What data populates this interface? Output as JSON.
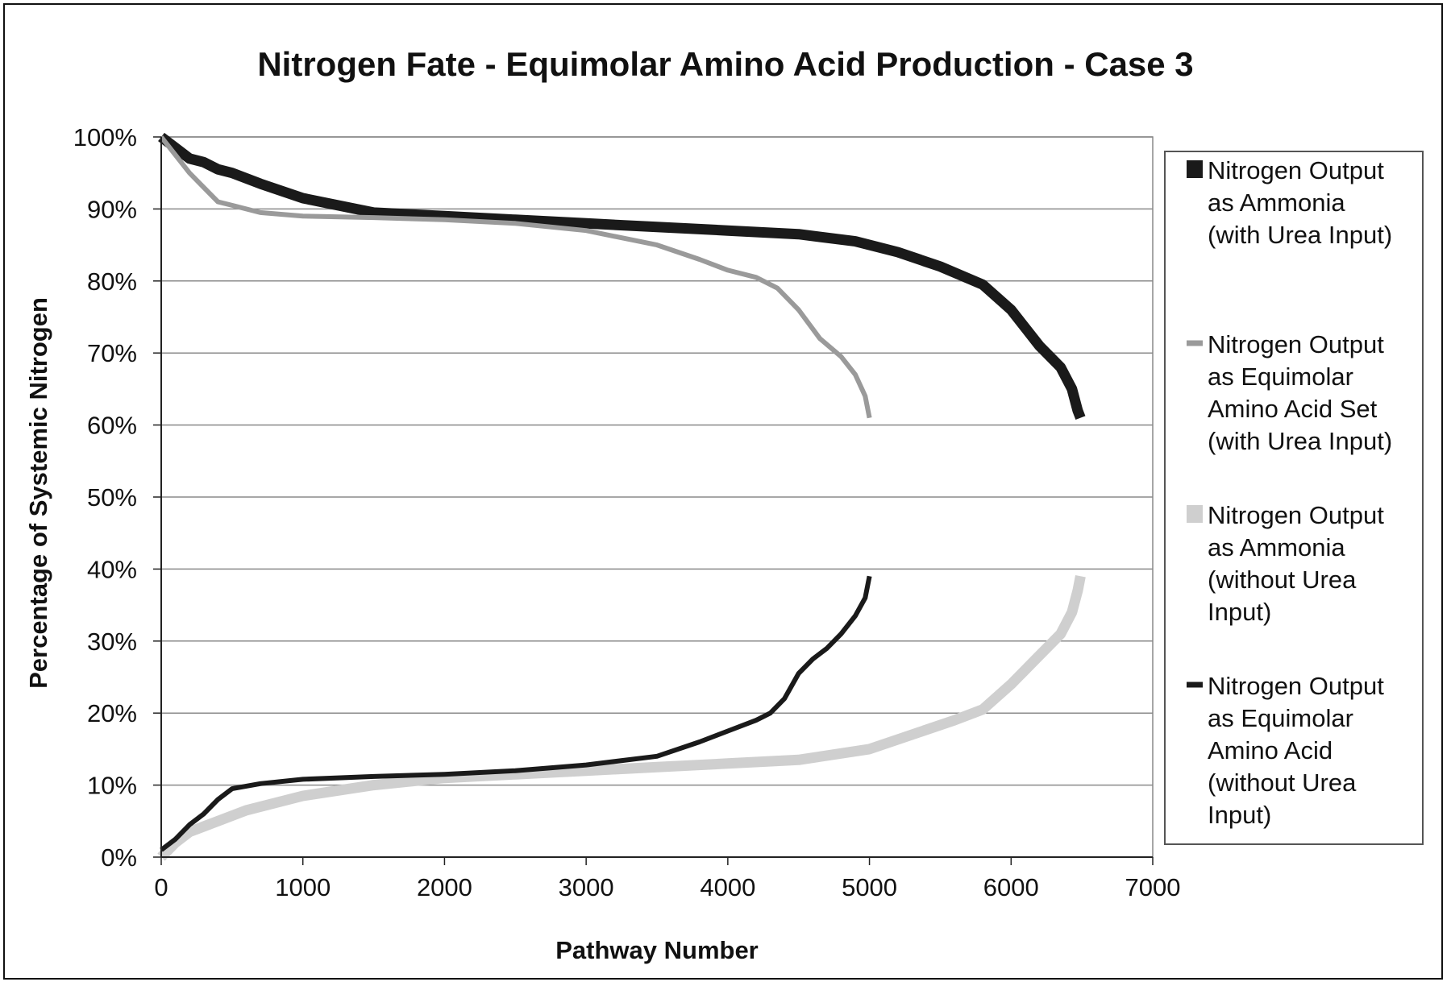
{
  "chart_data": {
    "type": "line",
    "title": "Nitrogen Fate - Equimolar Amino Acid Production - Case 3",
    "xlabel": "Pathway Number",
    "ylabel": "Percentage of Systemic Nitrogen",
    "xlim": [
      0,
      7000
    ],
    "ylim": [
      0,
      100
    ],
    "x_ticks": [
      "0",
      "1000",
      "2000",
      "3000",
      "4000",
      "5000",
      "6000",
      "7000"
    ],
    "y_ticks": [
      "0%",
      "10%",
      "20%",
      "30%",
      "40%",
      "50%",
      "60%",
      "70%",
      "80%",
      "90%",
      "100%"
    ],
    "grid": "horizontal",
    "legend_position": "right",
    "series": [
      {
        "name": [
          "Nitrogen Output",
          "as Ammonia",
          "(with Urea Input)"
        ],
        "color": "#1a1a1a",
        "line_style": "thick",
        "x": [
          0,
          100,
          200,
          300,
          400,
          500,
          700,
          1000,
          1500,
          2000,
          2500,
          3000,
          3500,
          4000,
          4500,
          4900,
          5200,
          5500,
          5800,
          6000,
          6200,
          6350,
          6430,
          6470,
          6490
        ],
        "y": [
          100,
          98.5,
          97,
          96.5,
          95.5,
          95,
          93.5,
          91.5,
          89.5,
          89,
          88.5,
          88,
          87.5,
          87,
          86.5,
          85.5,
          84,
          82,
          79.5,
          76,
          71,
          68,
          65,
          62,
          61
        ]
      },
      {
        "name": [
          "Nitrogen Output",
          "as Equimolar",
          "Amino Acid Set",
          "(with Urea Input)"
        ],
        "color": "#9a9a9a",
        "line_style": "medium",
        "x": [
          0,
          100,
          200,
          300,
          400,
          500,
          700,
          1000,
          1500,
          2000,
          2500,
          3000,
          3500,
          3800,
          4000,
          4200,
          4350,
          4500,
          4650,
          4800,
          4900,
          4970,
          5000
        ],
        "y": [
          100,
          97.5,
          95,
          93,
          91,
          90.5,
          89.5,
          89,
          88.8,
          88.5,
          88,
          87,
          85,
          83,
          81.5,
          80.5,
          79,
          76,
          72,
          69.5,
          67,
          64,
          61
        ]
      },
      {
        "name": [
          "Nitrogen Output",
          "as Ammonia",
          "(without Urea",
          "Input)"
        ],
        "color": "#cfcfcf",
        "line_style": "thick",
        "x": [
          0,
          100,
          200,
          400,
          600,
          1000,
          1500,
          2000,
          2500,
          3000,
          3500,
          4000,
          4500,
          5000,
          5300,
          5600,
          5800,
          6000,
          6200,
          6350,
          6430,
          6470,
          6490
        ],
        "y": [
          0,
          2,
          3.5,
          5,
          6.5,
          8.5,
          10,
          11,
          11.5,
          12,
          12.5,
          13,
          13.5,
          15,
          17,
          19,
          20.5,
          24,
          28,
          31,
          34,
          37,
          39
        ]
      },
      {
        "name": [
          "Nitrogen Output",
          "as Equimolar",
          "Amino Acid",
          "(without Urea",
          "Input)"
        ],
        "color": "#1a1a1a",
        "line_style": "medium",
        "x": [
          0,
          100,
          200,
          300,
          400,
          500,
          700,
          1000,
          1500,
          2000,
          2500,
          3000,
          3500,
          3800,
          4000,
          4200,
          4300,
          4400,
          4500,
          4600,
          4700,
          4800,
          4900,
          4970,
          5000
        ],
        "y": [
          1,
          2.5,
          4.5,
          6,
          8,
          9.5,
          10.2,
          10.8,
          11.2,
          11.5,
          12,
          12.8,
          14,
          16,
          17.5,
          19,
          20,
          22,
          25.5,
          27.5,
          29,
          31,
          33.5,
          36,
          39
        ]
      }
    ]
  }
}
